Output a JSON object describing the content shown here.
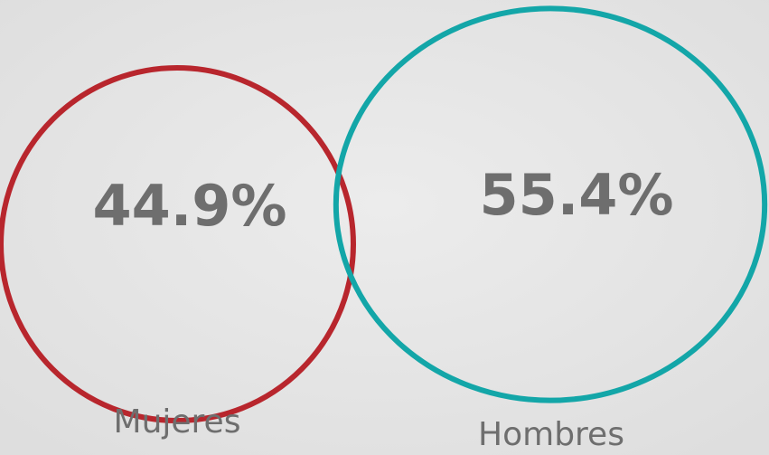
{
  "chart_data": {
    "type": "bubble",
    "categories": [
      "Mujeres",
      "Hombres"
    ],
    "values": [
      44.9,
      55.4
    ],
    "value_labels": [
      "44.9%",
      "55.4%"
    ],
    "colors": [
      "#b8262d",
      "#13a6a8"
    ]
  }
}
